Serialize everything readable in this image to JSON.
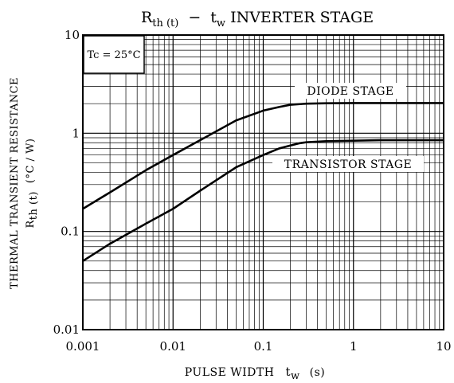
{
  "chart_data": {
    "type": "line",
    "title": {
      "r_main": "R",
      "r_sub": "th (t)",
      "dash": "−",
      "t_main": "t",
      "t_sub": "w",
      "rest": "INVERTER STAGE"
    },
    "xlabel": {
      "main": "PULSE WIDTH",
      "t_main": "t",
      "t_sub": "w",
      "unit": "(s)"
    },
    "ylabel": {
      "line1": "THERMAL TRANSIENT RESISTANCE",
      "r_main": "R",
      "r_sub": "th (t)",
      "unit": "(°C / W)"
    },
    "x_scale": "log",
    "y_scale": "log",
    "xlim": [
      0.001,
      10
    ],
    "ylim": [
      0.01,
      10
    ],
    "x_ticks": [
      "0.001",
      "0.01",
      "0.1",
      "1",
      "10"
    ],
    "y_ticks": [
      "0.01",
      "0.1",
      "1",
      "10"
    ],
    "grid": true,
    "condition_box": "Tc = 25°C",
    "series": [
      {
        "name": "DIODE STAGE",
        "x": [
          0.001,
          0.002,
          0.005,
          0.01,
          0.02,
          0.05,
          0.1,
          0.15,
          0.2,
          0.3,
          0.5,
          1,
          2,
          5,
          10
        ],
        "y": [
          0.17,
          0.25,
          0.42,
          0.6,
          0.85,
          1.35,
          1.7,
          1.85,
          1.95,
          2.0,
          2.02,
          2.03,
          2.03,
          2.03,
          2.03
        ]
      },
      {
        "name": "TRANSISTOR STAGE",
        "x": [
          0.001,
          0.002,
          0.005,
          0.01,
          0.02,
          0.05,
          0.1,
          0.15,
          0.2,
          0.25,
          0.3,
          0.5,
          1,
          2,
          5,
          10
        ],
        "y": [
          0.05,
          0.075,
          0.12,
          0.17,
          0.26,
          0.45,
          0.6,
          0.7,
          0.75,
          0.79,
          0.81,
          0.83,
          0.84,
          0.85,
          0.85,
          0.85
        ]
      }
    ]
  }
}
